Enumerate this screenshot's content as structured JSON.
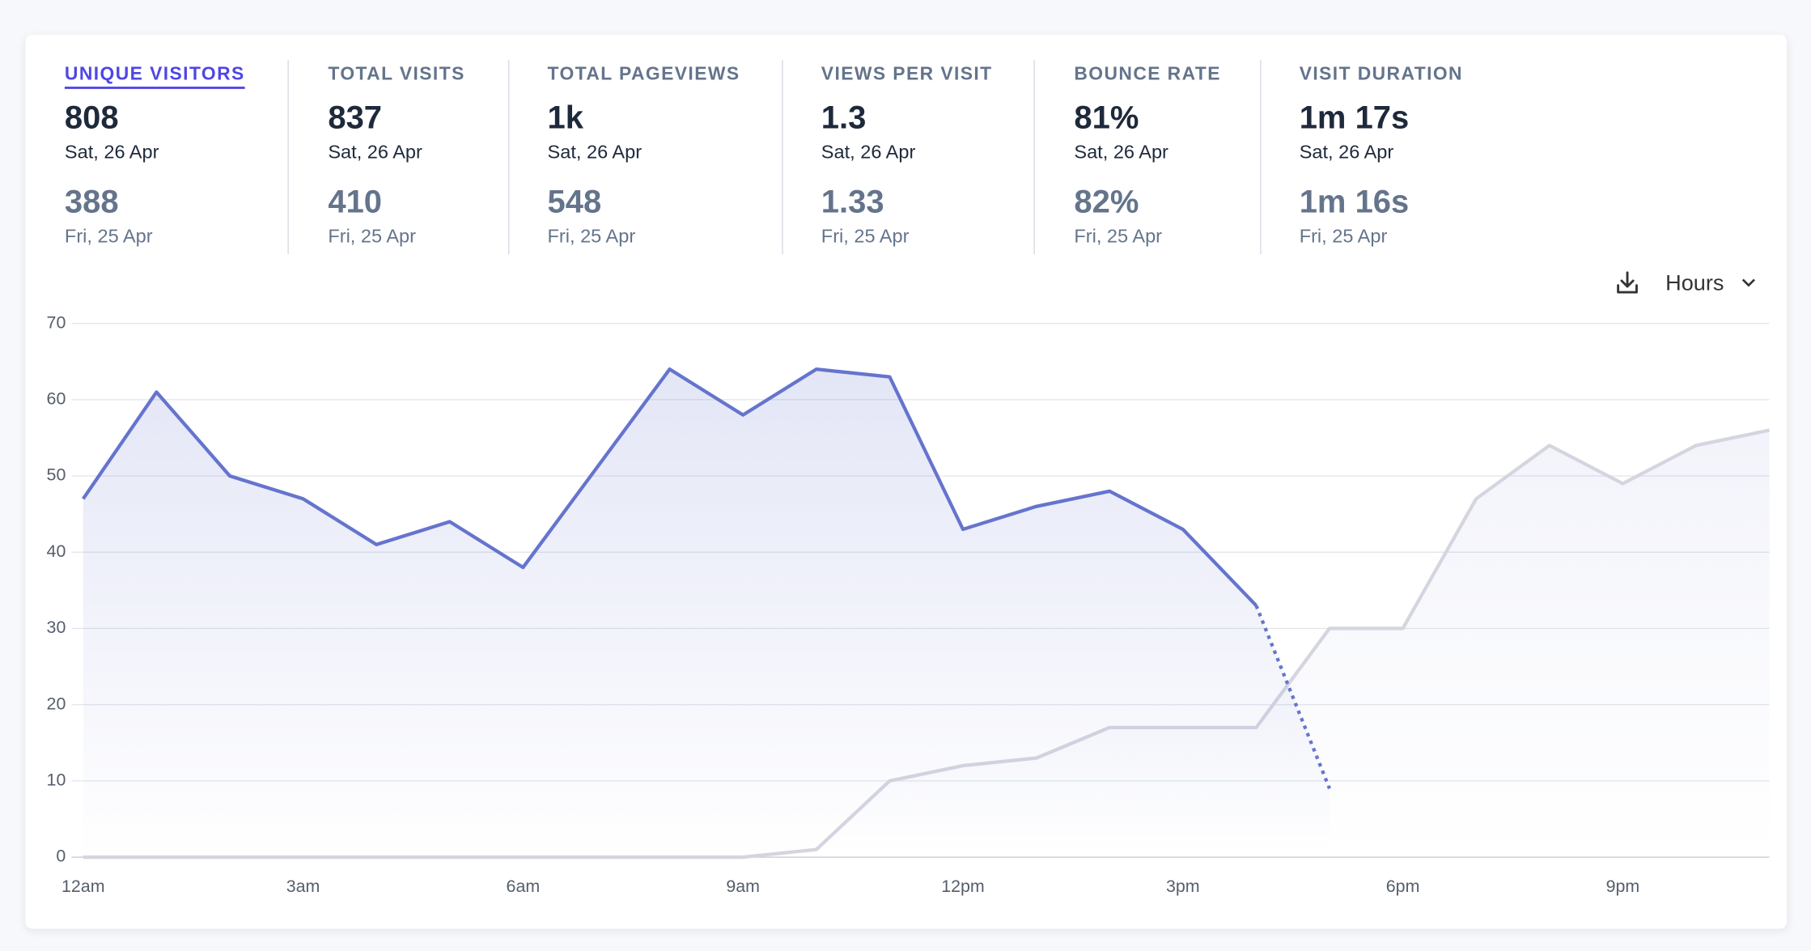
{
  "metrics": [
    {
      "label": "UNIQUE VISITORS",
      "value": "808",
      "date": "Sat, 26 Apr",
      "previous_value": "388",
      "previous_date": "Fri, 25 Apr"
    },
    {
      "label": "TOTAL VISITS",
      "value": "837",
      "date": "Sat, 26 Apr",
      "previous_value": "410",
      "previous_date": "Fri, 25 Apr"
    },
    {
      "label": "TOTAL PAGEVIEWS",
      "value": "1k",
      "date": "Sat, 26 Apr",
      "previous_value": "548",
      "previous_date": "Fri, 25 Apr"
    },
    {
      "label": "VIEWS PER VISIT",
      "value": "1.3",
      "date": "Sat, 26 Apr",
      "previous_value": "1.33",
      "previous_date": "Fri, 25 Apr"
    },
    {
      "label": "BOUNCE RATE",
      "value": "81%",
      "date": "Sat, 26 Apr",
      "previous_value": "82%",
      "previous_date": "Fri, 25 Apr"
    },
    {
      "label": "VISIT DURATION",
      "value": "1m 17s",
      "date": "Sat, 26 Apr",
      "previous_value": "1m 16s",
      "previous_date": "Fri, 25 Apr"
    }
  ],
  "selected_metric": 0,
  "interval": "Hours",
  "chart_data": {
    "type": "line",
    "categories": [
      "12am",
      null,
      null,
      "3am",
      null,
      null,
      "6am",
      null,
      null,
      "9am",
      null,
      null,
      "12pm",
      null,
      null,
      "3pm",
      null,
      null,
      "6pm",
      null,
      null,
      "9pm",
      null,
      null
    ],
    "series": [
      {
        "color": "#6574cd",
        "values": [
          47,
          61,
          50,
          47,
          41,
          44,
          38,
          51,
          64,
          58,
          64,
          63,
          43,
          46,
          48,
          43,
          33,
          9,
          null,
          null,
          null,
          null,
          null,
          null
        ],
        "incomplete_from": 16
      },
      {
        "color": "#d5d5e0",
        "values": [
          0,
          0,
          0,
          0,
          0,
          0,
          0,
          0,
          0,
          0,
          1,
          10,
          12,
          13,
          17,
          17,
          17,
          30,
          30,
          47,
          54,
          49,
          54,
          56
        ]
      }
    ],
    "ylim": [
      0,
      70
    ],
    "yticks": [
      0,
      10,
      20,
      30,
      40,
      50,
      60,
      70
    ],
    "grid": true
  }
}
